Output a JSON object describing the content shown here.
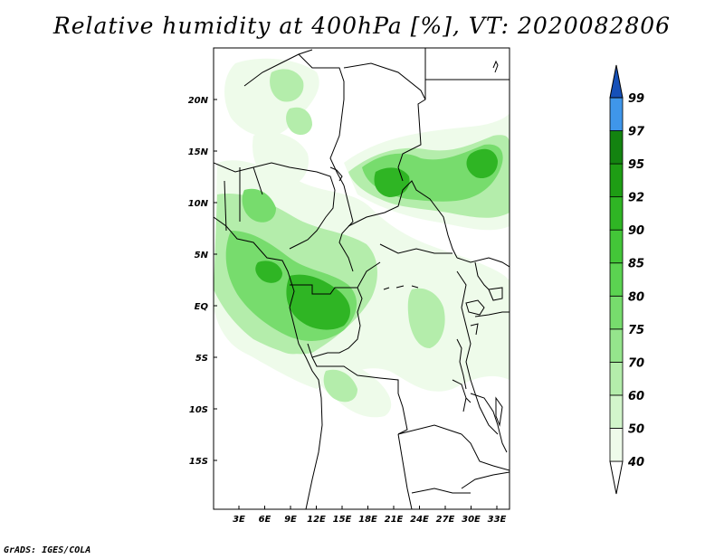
{
  "title": "Relative humidity at 400hPa [%], VT: 2020082806",
  "credit": "GrADS: IGES/COLA",
  "map": {
    "lat_labels": [
      "20N",
      "15N",
      "10N",
      "5N",
      "EQ",
      "5S",
      "10S",
      "15S"
    ],
    "lon_labels": [
      "3E",
      "6E",
      "9E",
      "12E",
      "15E",
      "18E",
      "21E",
      "24E",
      "27E",
      "30E",
      "33E"
    ]
  },
  "colorbar": {
    "levels": [
      "40",
      "50",
      "60",
      "70",
      "75",
      "80",
      "85",
      "90",
      "92",
      "95",
      "97",
      "99"
    ],
    "colors": [
      "#eefbea",
      "#d2f5cb",
      "#b4edab",
      "#95e58c",
      "#77dc6d",
      "#5bd351",
      "#43c638",
      "#2fb524",
      "#1e9d14",
      "#138310",
      "#3f96ea",
      "#1f6fdc",
      "#1650b8"
    ]
  }
}
